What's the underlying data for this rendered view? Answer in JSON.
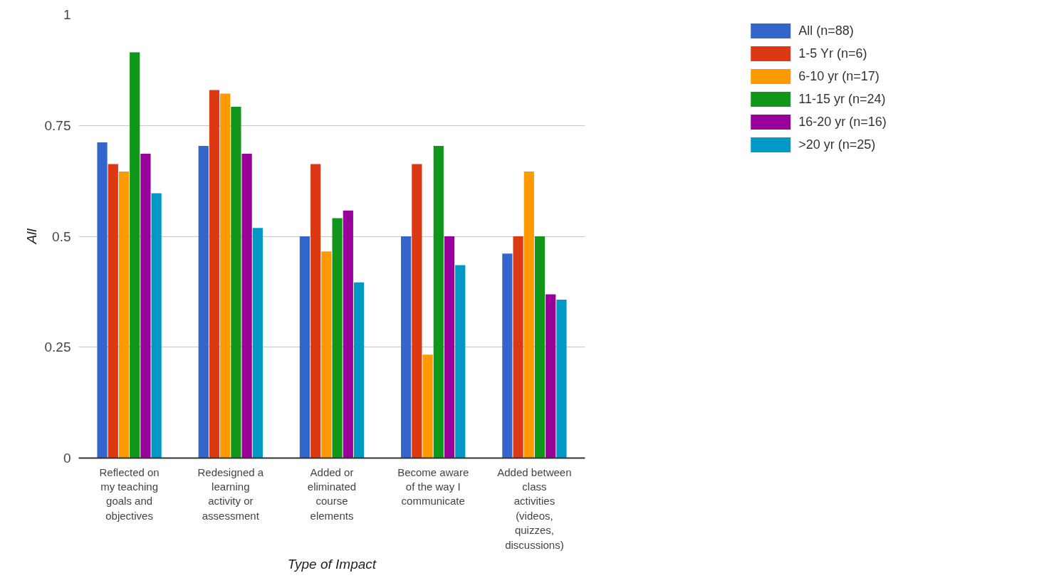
{
  "chart_data": {
    "type": "bar",
    "xlabel": "Type of Impact",
    "ylabel": "All",
    "categories": [
      "Reflected on my teaching goals and objectives",
      "Redesigned a learning activity or assessment",
      "Added or eliminated course elements",
      "Become aware of the way I communicate",
      "Added between class activities (videos, quizzes, discussions)"
    ],
    "series": [
      {
        "name": "All (n=88)",
        "color": "#3366cc",
        "values": [
          0.712,
          0.704,
          0.5,
          0.5,
          0.461
        ]
      },
      {
        "name": "1-5 Yr (n=6)",
        "color": "#dc3912",
        "values": [
          0.663,
          0.83,
          0.663,
          0.663,
          0.5
        ]
      },
      {
        "name": "6-10 yr (n=17)",
        "color": "#ff9900",
        "values": [
          0.646,
          0.822,
          0.466,
          0.233,
          0.646
        ]
      },
      {
        "name": "11-15 yr (n=24)",
        "color": "#109618",
        "values": [
          0.915,
          0.792,
          0.541,
          0.704,
          0.5
        ]
      },
      {
        "name": "16-20 yr (n=16)",
        "color": "#990099",
        "values": [
          0.686,
          0.686,
          0.558,
          0.5,
          0.369
        ]
      },
      {
        "name": ">20 yr (n=25)",
        "color": "#0099c6",
        "values": [
          0.597,
          0.519,
          0.396,
          0.435,
          0.357
        ]
      }
    ],
    "ylim": [
      0,
      1
    ],
    "yticks": [
      0,
      0.25,
      0.5,
      0.75,
      1
    ],
    "grid": "y",
    "legend": "top right"
  }
}
